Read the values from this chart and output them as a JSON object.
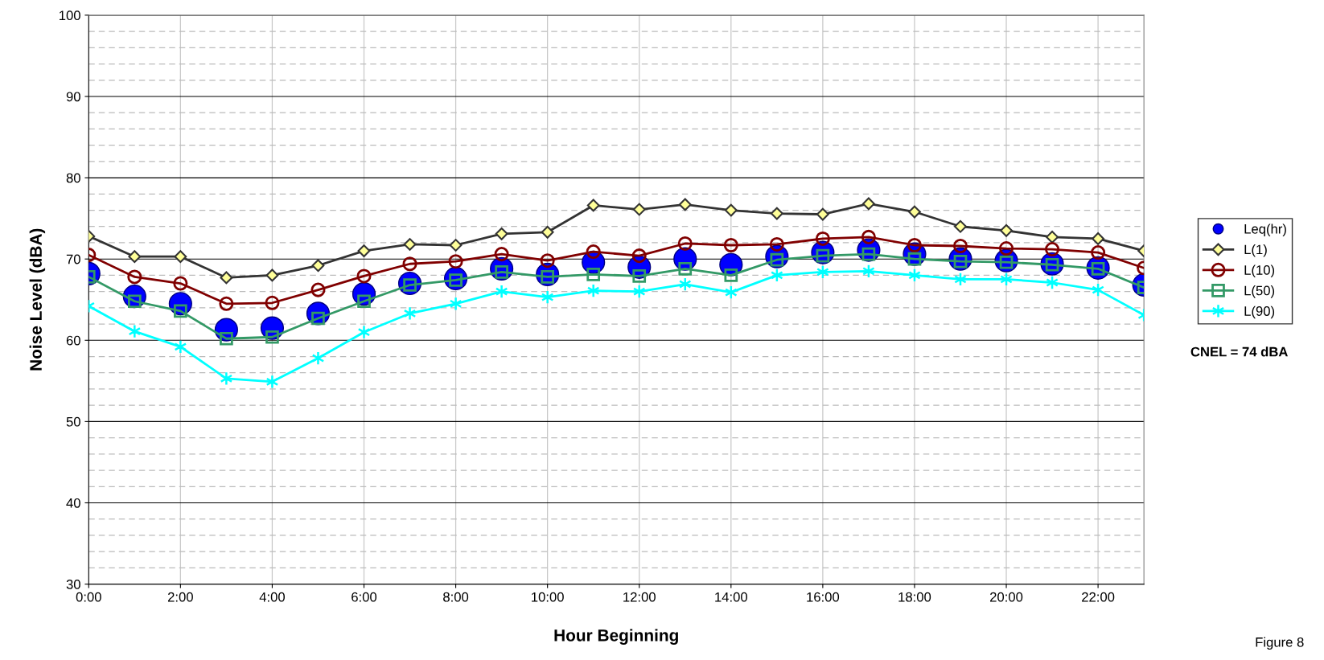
{
  "chart_data": {
    "type": "line",
    "xlabel": "Hour Beginning",
    "ylabel": "Noise Level (dBA)",
    "x": [
      0,
      1,
      2,
      3,
      4,
      5,
      6,
      7,
      8,
      9,
      10,
      11,
      12,
      13,
      14,
      15,
      16,
      17,
      18,
      19,
      20,
      21,
      22,
      23
    ],
    "xlim": [
      0,
      23
    ],
    "xticks": [
      {
        "value": 0,
        "label": "0:00"
      },
      {
        "value": 2,
        "label": "2:00"
      },
      {
        "value": 4,
        "label": "4:00"
      },
      {
        "value": 6,
        "label": "6:00"
      },
      {
        "value": 8,
        "label": "8:00"
      },
      {
        "value": 10,
        "label": "10:00"
      },
      {
        "value": 12,
        "label": "12:00"
      },
      {
        "value": 14,
        "label": "14:00"
      },
      {
        "value": 16,
        "label": "16:00"
      },
      {
        "value": 18,
        "label": "18:00"
      },
      {
        "value": 20,
        "label": "20:00"
      },
      {
        "value": 22,
        "label": "22:00"
      }
    ],
    "ylim": [
      30,
      100
    ],
    "yticks": [
      30,
      {
        "value": 32,
        "label": null
      },
      {
        "value": 34,
        "label": null
      },
      {
        "value": 36,
        "label": null
      },
      {
        "value": 38,
        "label": null
      },
      40,
      {
        "value": 42,
        "label": null
      },
      {
        "value": 44,
        "label": null
      },
      {
        "value": 46,
        "label": null
      },
      {
        "value": 48,
        "label": null
      },
      50,
      {
        "value": 52,
        "label": null
      },
      {
        "value": 54,
        "label": null
      },
      {
        "value": 56,
        "label": null
      },
      {
        "value": 58,
        "label": null
      },
      60,
      {
        "value": 62,
        "label": null
      },
      {
        "value": 64,
        "label": null
      },
      {
        "value": 66,
        "label": null
      },
      {
        "value": 68,
        "label": null
      },
      70,
      {
        "value": 72,
        "label": null
      },
      {
        "value": 74,
        "label": null
      },
      {
        "value": 76,
        "label": null
      },
      {
        "value": 78,
        "label": null
      },
      80,
      {
        "value": 82,
        "label": null
      },
      {
        "value": 84,
        "label": null
      },
      {
        "value": 86,
        "label": null
      },
      {
        "value": 88,
        "label": null
      },
      90,
      {
        "value": 92,
        "label": null
      },
      {
        "value": 94,
        "label": null
      },
      {
        "value": 96,
        "label": null
      },
      {
        "value": 98,
        "label": null
      },
      100
    ],
    "grid": true,
    "legend": "right",
    "annotations": [
      "CNEL = 74 dBA",
      "Figure 8"
    ],
    "series": [
      {
        "name": "Leq(hr)",
        "type": "scatter",
        "marker": "circle",
        "color": "#0000ff",
        "values": [
          68.2,
          65.4,
          64.5,
          61.3,
          61.5,
          63.3,
          65.7,
          67.0,
          67.6,
          68.8,
          68.1,
          69.6,
          69.0,
          70.0,
          69.3,
          70.3,
          70.8,
          71.1,
          70.6,
          70.0,
          69.8,
          69.4,
          68.9,
          66.8
        ]
      },
      {
        "name": "L(1)",
        "marker": "diamond",
        "color": "#333333",
        "values": [
          72.8,
          70.3,
          70.3,
          67.7,
          68.0,
          69.2,
          71.0,
          71.8,
          71.7,
          73.1,
          73.3,
          76.6,
          76.1,
          76.7,
          76.0,
          75.6,
          75.5,
          76.8,
          75.8,
          74.0,
          73.5,
          72.7,
          72.5,
          71.0
        ]
      },
      {
        "name": "L(10)",
        "marker": "circle",
        "color": "#800000",
        "values": [
          70.5,
          67.8,
          67.0,
          64.5,
          64.6,
          66.2,
          67.9,
          69.4,
          69.7,
          70.6,
          69.8,
          70.9,
          70.4,
          71.9,
          71.7,
          71.8,
          72.5,
          72.7,
          71.7,
          71.6,
          71.3,
          71.2,
          70.8,
          68.9
        ]
      },
      {
        "name": "L(50)",
        "marker": "square",
        "color": "#339966",
        "values": [
          67.8,
          64.8,
          63.6,
          60.2,
          60.4,
          62.7,
          64.8,
          66.8,
          67.4,
          68.4,
          67.8,
          68.1,
          67.9,
          68.8,
          68.0,
          69.9,
          70.4,
          70.6,
          70.0,
          69.7,
          69.6,
          69.3,
          68.8,
          66.5
        ]
      },
      {
        "name": "L(90)",
        "marker": "cross",
        "color": "#00ffff",
        "values": [
          64.2,
          61.1,
          59.2,
          55.3,
          54.9,
          57.8,
          61.0,
          63.3,
          64.5,
          66.0,
          65.3,
          66.1,
          66.0,
          66.9,
          65.9,
          68.0,
          68.4,
          68.5,
          68.0,
          67.5,
          67.5,
          67.1,
          66.2,
          63.1
        ]
      }
    ]
  }
}
